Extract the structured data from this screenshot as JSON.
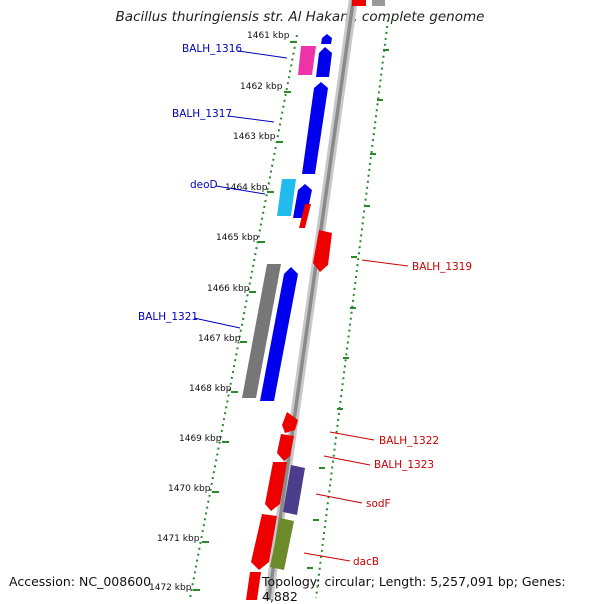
{
  "title": "Bacillus thuringiensis str. Al Hakam, complete genome",
  "footer": {
    "accession": "Accession: NC_008600",
    "summary": "Topology: circular; Length: 5,257,091 bp; Genes: 4,882"
  },
  "ruler": {
    "labels": [
      "1461 kbp",
      "1462 kbp",
      "1463 kbp",
      "1464 kbp",
      "1465 kbp",
      "1466 kbp",
      "1467 kbp",
      "1468 kbp",
      "1469 kbp",
      "1470 kbp",
      "1471 kbp",
      "1472 kbp"
    ]
  },
  "gene_labels": {
    "left": [
      "BALH_1316",
      "BALH_1317",
      "deoD",
      "BALH_1321"
    ],
    "right": [
      "BALH_1319",
      "BALH_1322",
      "BALH_1323",
      "sodF",
      "dacB"
    ]
  },
  "colors": {
    "blue_gene": "#0000ee",
    "red_gene": "#ee0000",
    "magenta_gene": "#ee33aa",
    "cyan_gene": "#22bbee",
    "gray_gene": "#777777",
    "purple_gene": "#4b3c8c",
    "olive_gene": "#6b8a2a",
    "ruler_green": "#2a8a2a",
    "backbone": "#999999",
    "left_label": "#0000bb",
    "right_label": "#cc0000"
  }
}
